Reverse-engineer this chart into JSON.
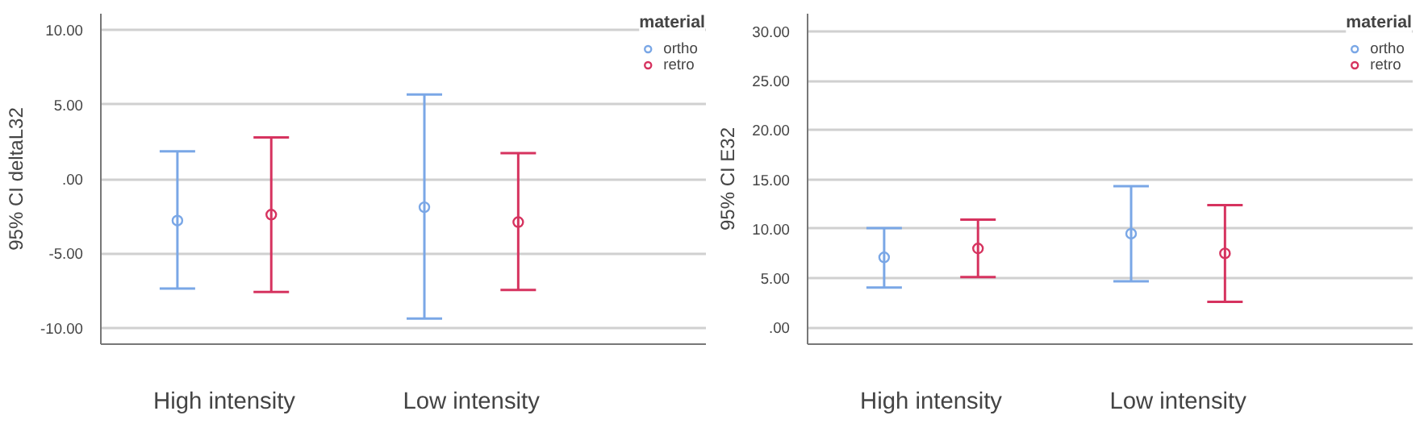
{
  "chart_data": [
    {
      "type": "scatter",
      "ylabel": "95% CI deltaL32",
      "legend_title": "material",
      "categories": [
        "High intensity",
        "Low intensity"
      ],
      "ylim": [
        -11.1,
        11.1
      ],
      "yticks": [
        {
          "value": -10,
          "label": "-10.00"
        },
        {
          "value": -5,
          "label": "-5.00"
        },
        {
          "value": 0,
          "label": ".00"
        },
        {
          "value": 5,
          "label": "5.00"
        },
        {
          "value": 10,
          "label": "10.00"
        }
      ],
      "grid": "y",
      "legend": "top right",
      "marker": "circle",
      "series": [
        {
          "name": "ortho",
          "color": "#7aa7e6",
          "values": [
            -2.8,
            -1.9
          ],
          "errors": [
            [
              -7.37,
              1.86
            ],
            [
              -9.38,
              5.67
            ]
          ]
        },
        {
          "name": "retro",
          "color": "#d6335f",
          "values": [
            -2.4,
            -2.9
          ],
          "errors": [
            [
              -7.59,
              2.79
            ],
            [
              -7.46,
              1.73
            ]
          ]
        }
      ]
    },
    {
      "type": "scatter",
      "ylabel": "95% CI E32",
      "legend_title": "material",
      "categories": [
        "High intensity",
        "Low intensity"
      ],
      "ylim": [
        -1.7,
        31.8
      ],
      "yticks": [
        {
          "value": 0,
          "label": ".00"
        },
        {
          "value": 5,
          "label": "5.00"
        },
        {
          "value": 10,
          "label": "10.00"
        },
        {
          "value": 15,
          "label": "15.00"
        },
        {
          "value": 20,
          "label": "20.00"
        },
        {
          "value": 25,
          "label": "25.00"
        },
        {
          "value": 30,
          "label": "30.00"
        }
      ],
      "grid": "y",
      "legend": "top right",
      "marker": "circle",
      "series": [
        {
          "name": "ortho",
          "color": "#7aa7e6",
          "values": [
            7.1,
            9.5
          ],
          "errors": [
            [
              4.05,
              10.06
            ],
            [
              4.67,
              14.31
            ]
          ]
        },
        {
          "name": "retro",
          "color": "#d6335f",
          "values": [
            8.0,
            7.5
          ],
          "errors": [
            [
              5.1,
              10.92
            ],
            [
              2.58,
              12.4
            ]
          ]
        }
      ]
    }
  ]
}
